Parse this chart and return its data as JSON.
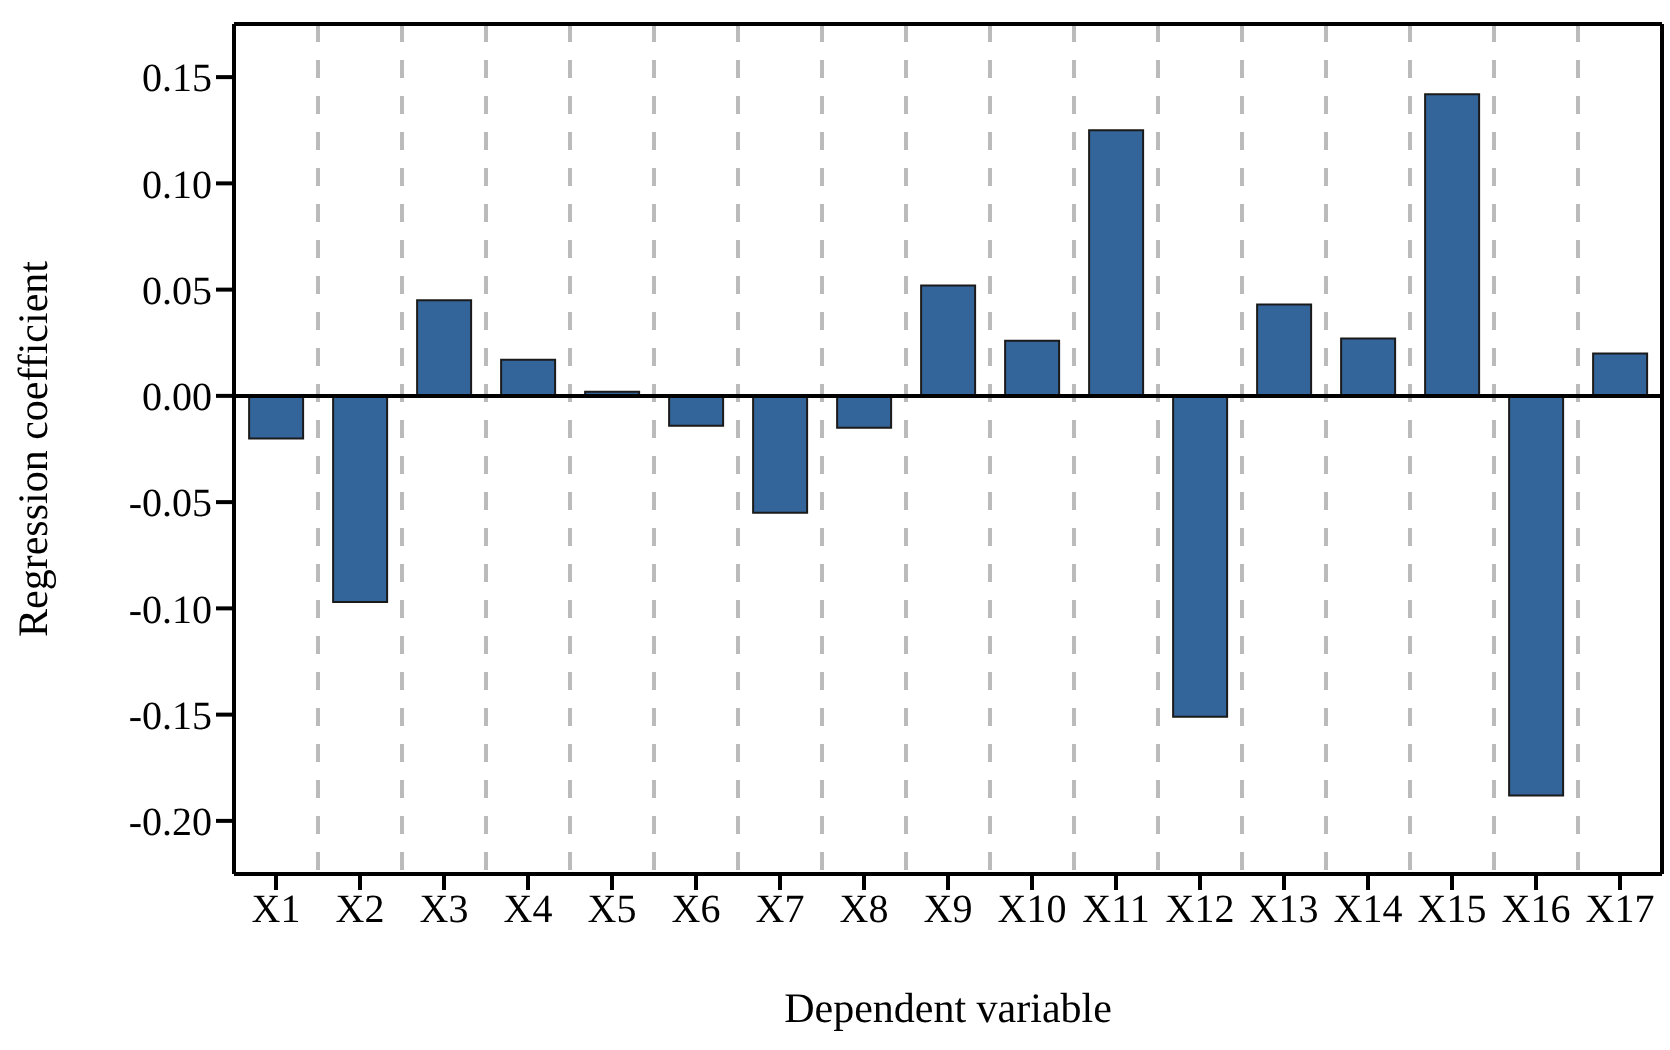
{
  "chart_data": {
    "type": "bar",
    "xlabel": "Dependent variable",
    "ylabel": "Regression coefficient",
    "categories": [
      "X1",
      "X2",
      "X3",
      "X4",
      "X5",
      "X6",
      "X7",
      "X8",
      "X9",
      "X10",
      "X11",
      "X12",
      "X13",
      "X14",
      "X15",
      "X16",
      "X17"
    ],
    "values": [
      -0.02,
      -0.097,
      0.045,
      0.017,
      0.002,
      -0.014,
      -0.055,
      -0.015,
      0.052,
      0.026,
      0.125,
      -0.151,
      0.043,
      0.027,
      0.142,
      -0.188,
      0.02
    ],
    "color": "#34659a",
    "ylim": [
      -0.225,
      0.175
    ],
    "yticks": [
      {
        "value": -0.2,
        "label": "-0.20"
      },
      {
        "value": -0.15,
        "label": "-0.15"
      },
      {
        "value": -0.1,
        "label": "-0.10"
      },
      {
        "value": -0.05,
        "label": "-0.05"
      },
      {
        "value": 0,
        "label": "0.00"
      },
      {
        "value": 0.05,
        "label": "0.05"
      },
      {
        "value": 0.1,
        "label": "0.10"
      },
      {
        "value": 0.15,
        "label": "0.15"
      }
    ],
    "ref_lines": [
      {
        "axis": "y",
        "value": 0,
        "color": "#000000"
      }
    ],
    "grid": "x",
    "legend": false
  }
}
